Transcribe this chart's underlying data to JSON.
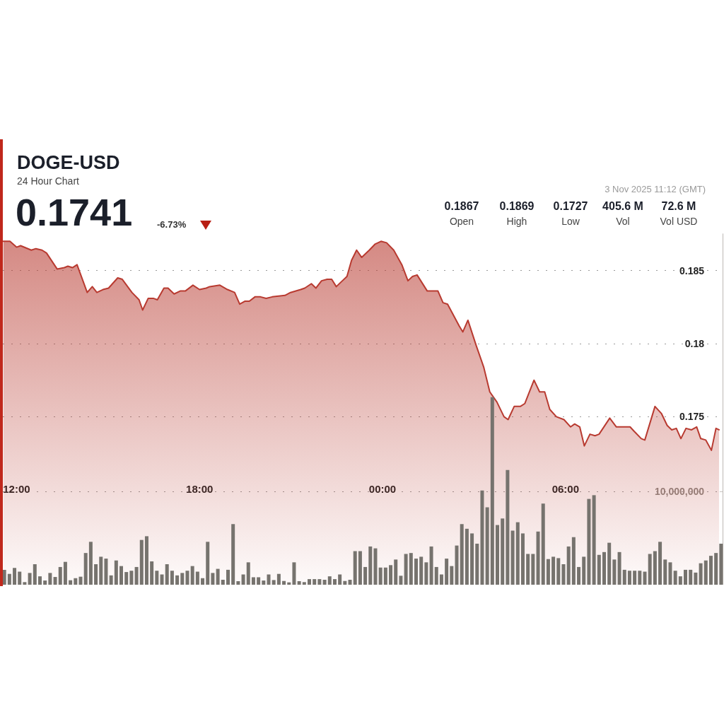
{
  "chart_data": {
    "type": "area",
    "title": "DOGE-USD",
    "subtitle": "24 Hour Chart",
    "annotations": [
      "0.1741",
      "-6.73%",
      "3 Nov 2025 11:12 (GMT)",
      "0.1867",
      "Open",
      "0.1869",
      "High",
      "0.1727",
      "Low",
      "405.6 M",
      "Vol",
      "72.6 M",
      "Vol USD"
    ],
    "xlim": [
      "2025-11-02T11:33",
      "2025-11-03T11:09"
    ],
    "xticks": [
      {
        "value": "2025-11-02T12:00",
        "label": "12:00"
      },
      {
        "value": "2025-11-02T18:00",
        "label": "18:00"
      },
      {
        "value": "2025-11-03T00:00",
        "label": "00:00"
      },
      {
        "value": "2025-11-03T06:00",
        "label": "06:00"
      }
    ],
    "ylim": [
      0.1635,
      0.1875
    ],
    "yticks": [
      0.175,
      0.18,
      0.185
    ],
    "y2lim": [
      0,
      37600000
    ],
    "y2ticks": [
      {
        "value": 0,
        "label": null
      },
      {
        "value": 10000000,
        "label": "10,000,000"
      }
    ],
    "grid": "y",
    "marker": "none",
    "line_style": "solid",
    "series": [
      {
        "color": "#b83a30",
        "x": [
          "2025-11-02T11:34",
          "2025-11-02T11:47",
          "2025-11-02T12:00",
          "2025-11-02T12:08",
          "2025-11-02T12:29",
          "2025-11-02T12:38",
          "2025-11-02T12:50",
          "2025-11-02T12:59",
          "2025-11-02T13:20",
          "2025-11-02T13:34",
          "2025-11-02T13:41",
          "2025-11-02T13:50",
          "2025-11-02T13:59",
          "2025-11-02T14:19",
          "2025-11-02T14:29",
          "2025-11-02T14:38",
          "2025-11-02T14:50",
          "2025-11-02T15:01",
          "2025-11-02T15:19",
          "2025-11-02T15:28",
          "2025-11-02T15:47",
          "2025-11-02T16:01",
          "2025-11-02T16:08",
          "2025-11-02T16:19",
          "2025-11-02T16:29",
          "2025-11-02T16:37",
          "2025-11-02T16:50",
          "2025-11-02T16:58",
          "2025-11-02T17:10",
          "2025-11-02T17:22",
          "2025-11-02T17:32",
          "2025-11-02T17:47",
          "2025-11-02T18:00",
          "2025-11-02T18:13",
          "2025-11-02T18:20",
          "2025-11-02T18:40",
          "2025-11-02T18:55",
          "2025-11-02T19:09",
          "2025-11-02T19:19",
          "2025-11-02T19:29",
          "2025-11-02T19:38",
          "2025-11-02T19:49",
          "2025-11-02T20:00",
          "2025-11-02T20:11",
          "2025-11-02T20:23",
          "2025-11-02T20:48",
          "2025-11-02T20:59",
          "2025-11-02T21:19",
          "2025-11-02T21:27",
          "2025-11-02T21:40",
          "2025-11-02T21:49",
          "2025-11-02T22:00",
          "2025-11-02T22:11",
          "2025-11-02T22:20",
          "2025-11-02T22:29",
          "2025-11-02T22:41",
          "2025-11-02T22:50",
          "2025-11-02T22:59",
          "2025-11-02T23:09",
          "2025-11-02T23:19",
          "2025-11-02T23:34",
          "2025-11-02T23:45",
          "2025-11-02T23:57",
          "2025-11-03T00:08",
          "2025-11-03T00:22",
          "2025-11-03T00:38",
          "2025-11-03T00:50",
          "2025-11-03T00:59",
          "2025-11-03T01:08",
          "2025-11-03T01:28",
          "2025-11-03T01:49",
          "2025-11-03T01:59",
          "2025-11-03T02:08",
          "2025-11-03T02:31",
          "2025-11-03T02:38",
          "2025-11-03T02:48",
          "2025-11-03T03:04",
          "2025-11-03T03:19",
          "2025-11-03T03:31",
          "2025-11-03T03:45",
          "2025-11-03T03:59",
          "2025-11-03T04:07",
          "2025-11-03T04:19",
          "2025-11-03T04:31",
          "2025-11-03T04:40",
          "2025-11-03T04:58",
          "2025-11-03T05:09",
          "2025-11-03T05:19",
          "2025-11-03T05:29",
          "2025-11-03T05:42",
          "2025-11-03T05:57",
          "2025-11-03T06:10",
          "2025-11-03T06:18",
          "2025-11-03T06:28",
          "2025-11-03T06:37",
          "2025-11-03T06:48",
          "2025-11-03T06:58",
          "2025-11-03T07:06",
          "2025-11-03T07:27",
          "2025-11-03T07:40",
          "2025-11-03T08:07",
          "2025-11-03T08:15",
          "2025-11-03T08:29",
          "2025-11-03T08:36",
          "2025-11-03T08:56",
          "2025-11-03T09:09",
          "2025-11-03T09:20",
          "2025-11-03T09:29",
          "2025-11-03T09:38",
          "2025-11-03T09:47",
          "2025-11-03T09:57",
          "2025-11-03T10:08",
          "2025-11-03T10:18",
          "2025-11-03T10:26",
          "2025-11-03T10:36",
          "2025-11-03T10:47",
          "2025-11-03T10:56",
          "2025-11-03T11:02"
        ],
        "values": [
          0.187,
          0.187,
          0.1866,
          0.1867,
          0.1864,
          0.1865,
          0.1864,
          0.1862,
          0.1851,
          0.1852,
          0.1853,
          0.1852,
          0.1854,
          0.1835,
          0.1839,
          0.1835,
          0.1837,
          0.1838,
          0.1845,
          0.1844,
          0.1835,
          0.183,
          0.1823,
          0.1831,
          0.1831,
          0.183,
          0.1838,
          0.1838,
          0.1834,
          0.1836,
          0.1836,
          0.184,
          0.1837,
          0.1838,
          0.1839,
          0.184,
          0.1837,
          0.1835,
          0.1827,
          0.1829,
          0.1829,
          0.1832,
          0.1832,
          0.1831,
          0.1832,
          0.1833,
          0.1835,
          0.1837,
          0.1838,
          0.1841,
          0.1838,
          0.1843,
          0.1844,
          0.1844,
          0.1839,
          0.1843,
          0.1846,
          0.1857,
          0.1864,
          0.1859,
          0.1864,
          0.1868,
          0.187,
          0.1869,
          0.1864,
          0.1854,
          0.1843,
          0.1846,
          0.1847,
          0.1836,
          0.1836,
          0.1828,
          0.1827,
          0.1812,
          0.1808,
          0.1816,
          0.1799,
          0.1784,
          0.1767,
          0.176,
          0.175,
          0.1748,
          0.1757,
          0.1757,
          0.1759,
          0.1775,
          0.1767,
          0.1767,
          0.1755,
          0.175,
          0.1748,
          0.1743,
          0.1745,
          0.1743,
          0.173,
          0.1738,
          0.1737,
          0.1738,
          0.1749,
          0.1743,
          0.1743,
          0.174,
          0.1735,
          0.1734,
          0.1757,
          0.1752,
          0.1744,
          0.1741,
          0.1742,
          0.1735,
          0.1742,
          0.1741,
          0.1743,
          0.1735,
          0.1734,
          0.1727,
          0.1742,
          0.1741
        ]
      },
      {
        "type": "bar",
        "axis": "y2",
        "color": "#76736e",
        "x": [
          "2025-11-02T11:36",
          "2025-11-02T11:46",
          "2025-11-02T11:56",
          "2025-11-02T12:06",
          "2025-11-02T12:16",
          "2025-11-02T12:26",
          "2025-11-02T12:36",
          "2025-11-02T12:46",
          "2025-11-02T12:56",
          "2025-11-02T13:06",
          "2025-11-02T13:16",
          "2025-11-02T13:26",
          "2025-11-02T13:36",
          "2025-11-02T13:46",
          "2025-11-02T13:56",
          "2025-11-02T14:06",
          "2025-11-02T14:16",
          "2025-11-02T14:26",
          "2025-11-02T14:36",
          "2025-11-02T14:46",
          "2025-11-02T14:56",
          "2025-11-02T15:06",
          "2025-11-02T15:16",
          "2025-11-02T15:26",
          "2025-11-02T15:36",
          "2025-11-02T15:46",
          "2025-11-02T15:56",
          "2025-11-02T16:06",
          "2025-11-02T16:16",
          "2025-11-02T16:26",
          "2025-11-02T16:36",
          "2025-11-02T16:46",
          "2025-11-02T16:56",
          "2025-11-02T17:06",
          "2025-11-02T17:16",
          "2025-11-02T17:26",
          "2025-11-02T17:36",
          "2025-11-02T17:46",
          "2025-11-02T17:56",
          "2025-11-02T18:06",
          "2025-11-02T18:16",
          "2025-11-02T18:26",
          "2025-11-02T18:36",
          "2025-11-02T18:46",
          "2025-11-02T18:56",
          "2025-11-02T19:06",
          "2025-11-02T19:16",
          "2025-11-02T19:26",
          "2025-11-02T19:36",
          "2025-11-02T19:46",
          "2025-11-02T19:56",
          "2025-11-02T20:06",
          "2025-11-02T20:16",
          "2025-11-02T20:26",
          "2025-11-02T20:36",
          "2025-11-02T20:46",
          "2025-11-02T20:56",
          "2025-11-02T21:06",
          "2025-11-02T21:16",
          "2025-11-02T21:26",
          "2025-11-02T21:36",
          "2025-11-02T21:46",
          "2025-11-02T21:56",
          "2025-11-02T22:06",
          "2025-11-02T22:16",
          "2025-11-02T22:26",
          "2025-11-02T22:36",
          "2025-11-02T22:46",
          "2025-11-02T22:56",
          "2025-11-02T23:06",
          "2025-11-02T23:16",
          "2025-11-02T23:26",
          "2025-11-02T23:36",
          "2025-11-02T23:46",
          "2025-11-02T23:56",
          "2025-11-03T00:06",
          "2025-11-03T00:16",
          "2025-11-03T00:26",
          "2025-11-03T00:36",
          "2025-11-03T00:46",
          "2025-11-03T00:56",
          "2025-11-03T01:06",
          "2025-11-03T01:16",
          "2025-11-03T01:26",
          "2025-11-03T01:36",
          "2025-11-03T01:46",
          "2025-11-03T01:56",
          "2025-11-03T02:06",
          "2025-11-03T02:16",
          "2025-11-03T02:26",
          "2025-11-03T02:36",
          "2025-11-03T02:46",
          "2025-11-03T02:56",
          "2025-11-03T03:06",
          "2025-11-03T03:16",
          "2025-11-03T03:26",
          "2025-11-03T03:36",
          "2025-11-03T03:46",
          "2025-11-03T03:56",
          "2025-11-03T04:06",
          "2025-11-03T04:16",
          "2025-11-03T04:26",
          "2025-11-03T04:36",
          "2025-11-03T04:46",
          "2025-11-03T04:56",
          "2025-11-03T05:06",
          "2025-11-03T05:16",
          "2025-11-03T05:26",
          "2025-11-03T05:36",
          "2025-11-03T05:46",
          "2025-11-03T05:56",
          "2025-11-03T06:06",
          "2025-11-03T06:16",
          "2025-11-03T06:26",
          "2025-11-03T06:36",
          "2025-11-03T06:46",
          "2025-11-03T06:56",
          "2025-11-03T07:06",
          "2025-11-03T07:16",
          "2025-11-03T07:26",
          "2025-11-03T07:36",
          "2025-11-03T07:46",
          "2025-11-03T07:56",
          "2025-11-03T08:06",
          "2025-11-03T08:16",
          "2025-11-03T08:26",
          "2025-11-03T08:36",
          "2025-11-03T08:46",
          "2025-11-03T08:56",
          "2025-11-03T09:06",
          "2025-11-03T09:16",
          "2025-11-03T09:26",
          "2025-11-03T09:36",
          "2025-11-03T09:46",
          "2025-11-03T09:56",
          "2025-11-03T10:06",
          "2025-11-03T10:16",
          "2025-11-03T10:26",
          "2025-11-03T10:36",
          "2025-11-03T10:46",
          "2025-11-03T10:56",
          "2025-11-03T11:06"
        ],
        "values": [
          1600000,
          1160000,
          1800000,
          1400000,
          280000,
          1260000,
          2200000,
          900000,
          450000,
          1260000,
          830000,
          1900000,
          2450000,
          480000,
          700000,
          860000,
          3400000,
          4600000,
          2200000,
          3000000,
          2800000,
          1000000,
          2600000,
          2000000,
          1360000,
          1500000,
          1900000,
          4800000,
          5200000,
          2500000,
          1500000,
          1100000,
          2200000,
          1500000,
          1000000,
          1260000,
          1500000,
          2000000,
          1400000,
          700000,
          4600000,
          1260000,
          1700000,
          530000,
          1600000,
          6500000,
          380000,
          1100000,
          2400000,
          800000,
          800000,
          450000,
          1100000,
          500000,
          1160000,
          400000,
          250000,
          2400000,
          380000,
          280000,
          600000,
          600000,
          600000,
          530000,
          900000,
          600000,
          1100000,
          400000,
          530000,
          3600000,
          3600000,
          1900000,
          4100000,
          3900000,
          1840000,
          1840000,
          2100000,
          2700000,
          960000,
          3300000,
          3400000,
          2800000,
          3000000,
          2400000,
          4100000,
          1900000,
          1100000,
          2800000,
          2000000,
          4200000,
          6500000,
          6000000,
          5500000,
          4400000,
          10100000,
          8300000,
          20100000,
          6400000,
          7100000,
          12300000,
          5800000,
          6700000,
          5500000,
          3300000,
          3300000,
          5700000,
          8700000,
          2750000,
          3000000,
          2850000,
          2200000,
          4100000,
          5100000,
          1900000,
          3000000,
          9200000,
          9600000,
          3200000,
          3500000,
          4500000,
          2700000,
          3500000,
          1600000,
          1500000,
          1500000,
          1500000,
          1400000,
          3300000,
          3600000,
          4600000,
          2700000,
          2400000,
          1500000,
          900000,
          1600000,
          1600000,
          1300000,
          2300000,
          2600000,
          3100000,
          3400000,
          4400000
        ]
      }
    ]
  }
}
